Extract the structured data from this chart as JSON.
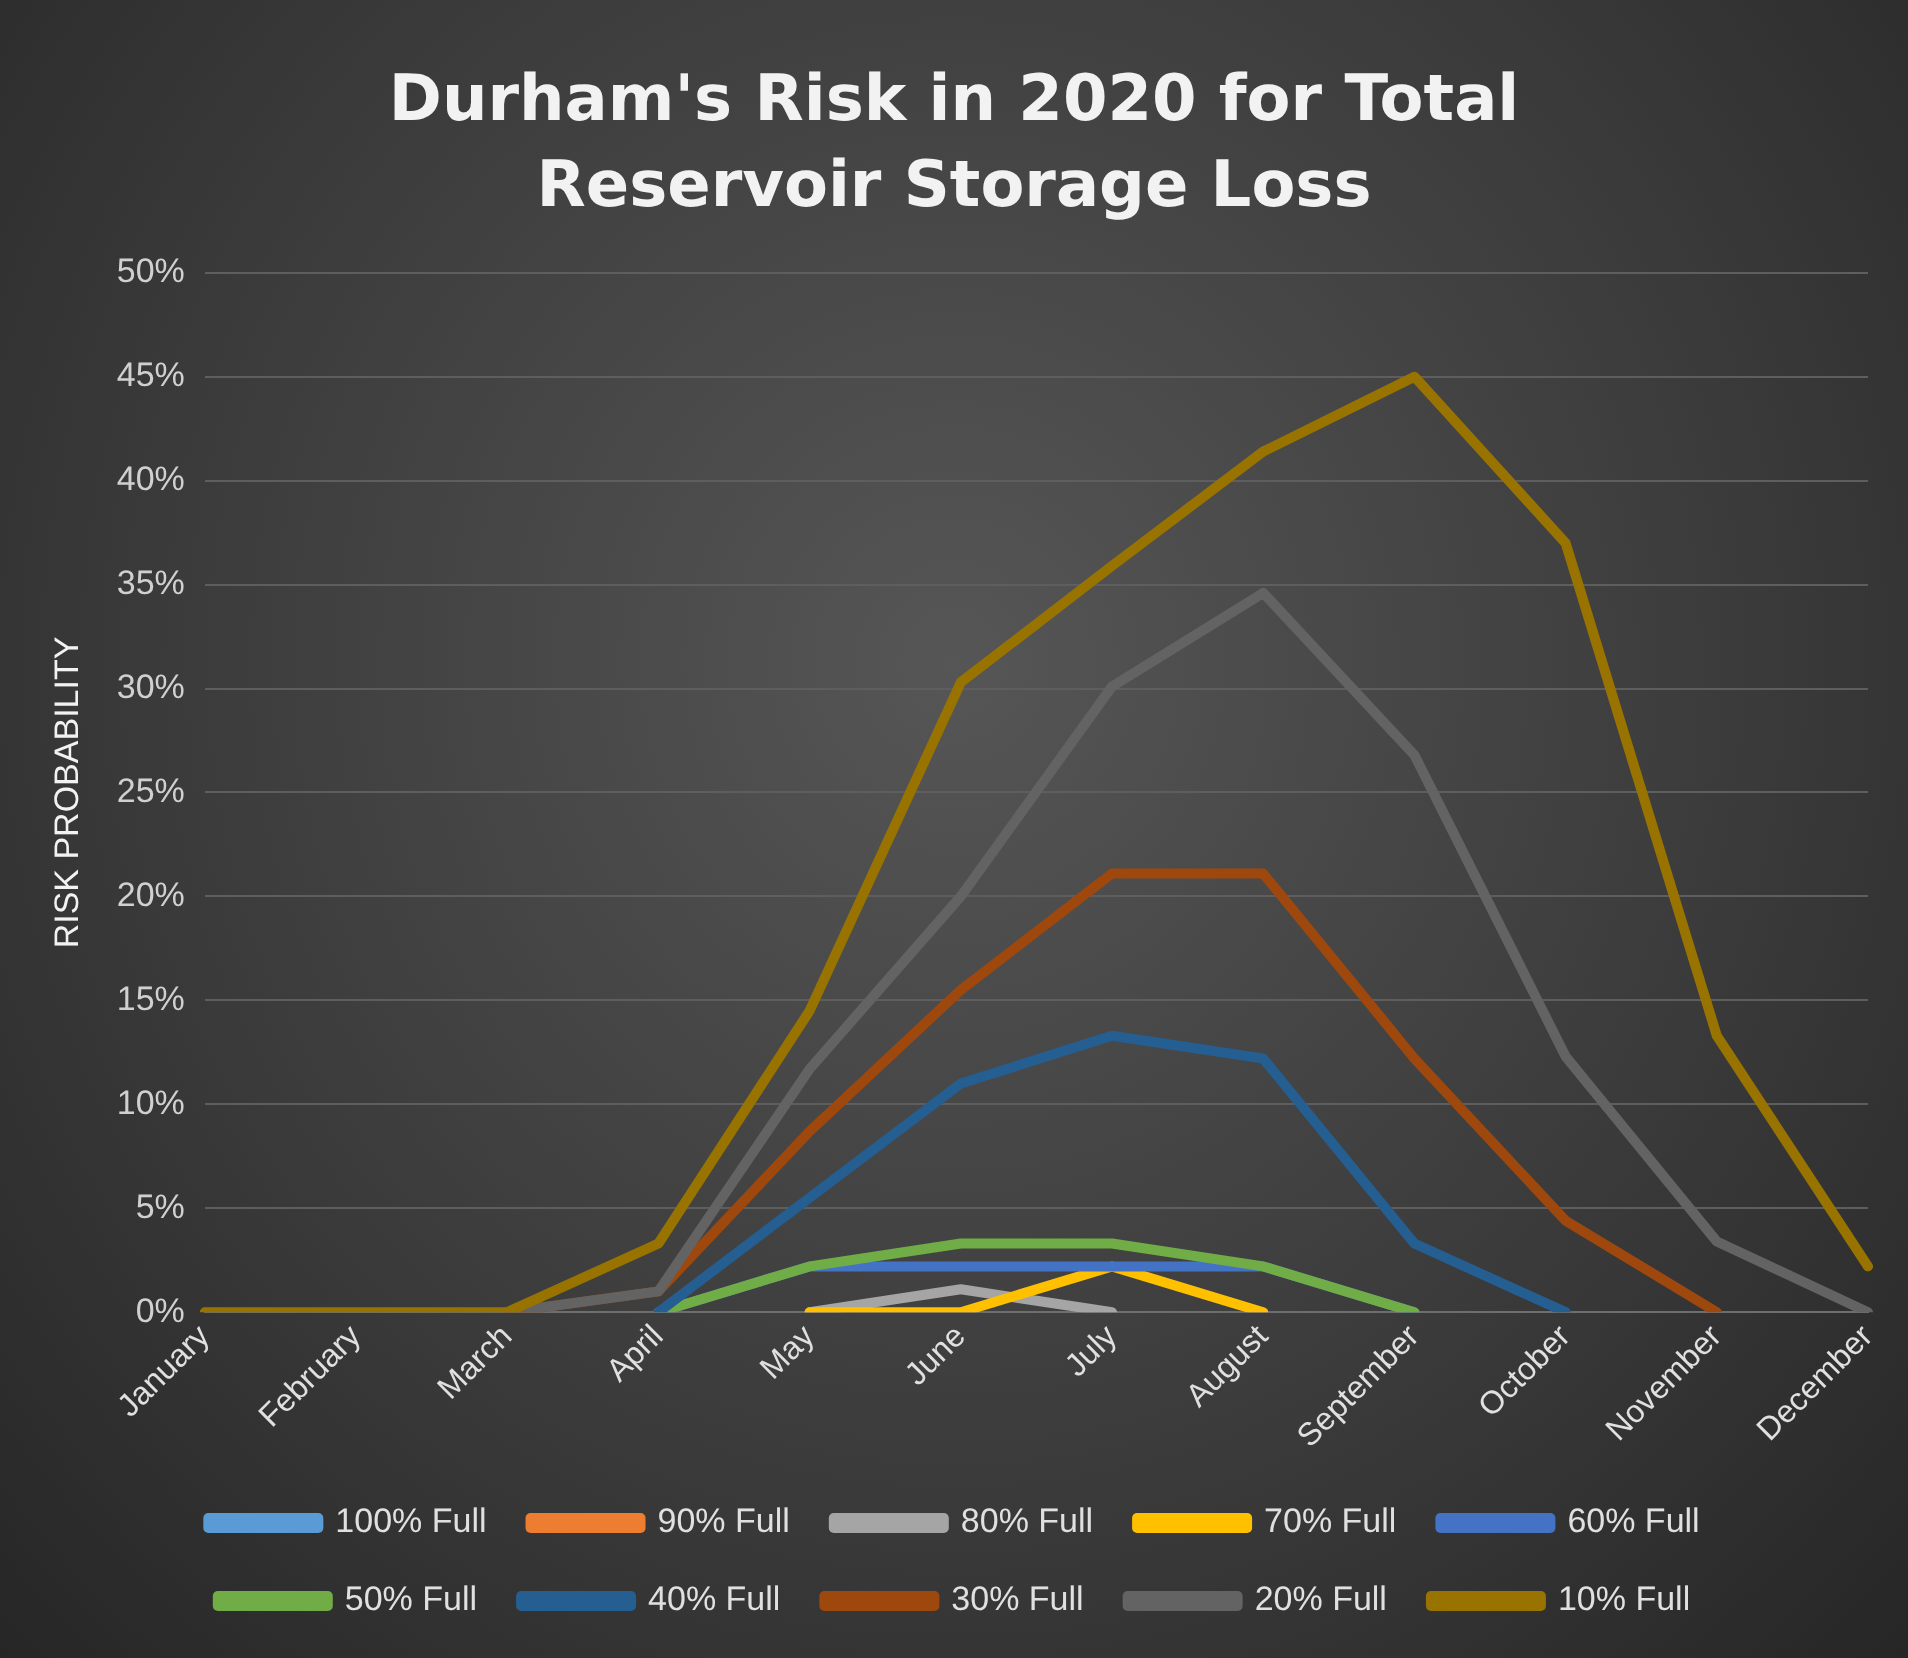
{
  "chart_data": {
    "type": "line",
    "title": "Durham's Risk in 2020 for Total Reservoir Storage Loss",
    "ylabel": "RISK PROBABILITY",
    "categories": [
      "January",
      "February",
      "March",
      "April",
      "May",
      "June",
      "July",
      "August",
      "September",
      "October",
      "November",
      "December"
    ],
    "series": [
      {
        "name": "100% Full",
        "color": "#5b9bd5",
        "values": [
          null,
          null,
          null,
          null,
          null,
          null,
          null,
          null,
          null,
          null,
          null,
          null
        ]
      },
      {
        "name": "90% Full",
        "color": "#ed7d31",
        "values": [
          null,
          null,
          null,
          null,
          null,
          null,
          null,
          null,
          null,
          null,
          null,
          null
        ]
      },
      {
        "name": "80% Full",
        "color": "#a5a5a5",
        "values": [
          null,
          null,
          null,
          null,
          0,
          1.1,
          0,
          null,
          null,
          null,
          null,
          null
        ]
      },
      {
        "name": "70% Full",
        "color": "#ffc000",
        "values": [
          null,
          null,
          null,
          null,
          0,
          0,
          2.2,
          0,
          null,
          null,
          null,
          null
        ]
      },
      {
        "name": "60% Full",
        "color": "#4472c4",
        "values": [
          null,
          null,
          null,
          0,
          2.2,
          2.2,
          2.2,
          2.2,
          0,
          null,
          null,
          null
        ]
      },
      {
        "name": "50% Full",
        "color": "#70ad47",
        "values": [
          null,
          null,
          null,
          0,
          2.2,
          3.3,
          3.3,
          2.2,
          0,
          null,
          null,
          null
        ]
      },
      {
        "name": "40% Full",
        "color": "#255e91",
        "values": [
          null,
          null,
          null,
          0,
          5.5,
          11,
          13.3,
          12.2,
          3.3,
          0,
          null,
          null
        ]
      },
      {
        "name": "30% Full",
        "color": "#9e480e",
        "values": [
          null,
          null,
          0,
          1,
          8.7,
          15.5,
          21.1,
          21.1,
          12.2,
          4.4,
          0,
          null
        ]
      },
      {
        "name": "20% Full",
        "color": "#636363",
        "values": [
          null,
          null,
          0,
          1,
          11.7,
          20,
          30.1,
          34.6,
          26.8,
          12.3,
          3.4,
          0
        ]
      },
      {
        "name": "10% Full",
        "color": "#997300",
        "values": [
          0,
          0,
          0,
          3.3,
          14.5,
          30.3,
          35.9,
          41.4,
          45,
          37,
          13.3,
          2.2
        ]
      }
    ],
    "ylim": [
      0,
      50
    ],
    "yticks": [
      {
        "value": 0,
        "label": "0%"
      },
      {
        "value": 5,
        "label": "5%"
      },
      {
        "value": 10,
        "label": "10%"
      },
      {
        "value": 15,
        "label": "15%"
      },
      {
        "value": 20,
        "label": "20%"
      },
      {
        "value": 25,
        "label": "25%"
      },
      {
        "value": 30,
        "label": "30%"
      },
      {
        "value": 35,
        "label": "35%"
      },
      {
        "value": 40,
        "label": "40%"
      },
      {
        "value": 45,
        "label": "45%"
      },
      {
        "value": 50,
        "label": "50%"
      }
    ],
    "grid": "y",
    "legend": "bottom",
    "marker": "none",
    "line_style": "solid"
  }
}
